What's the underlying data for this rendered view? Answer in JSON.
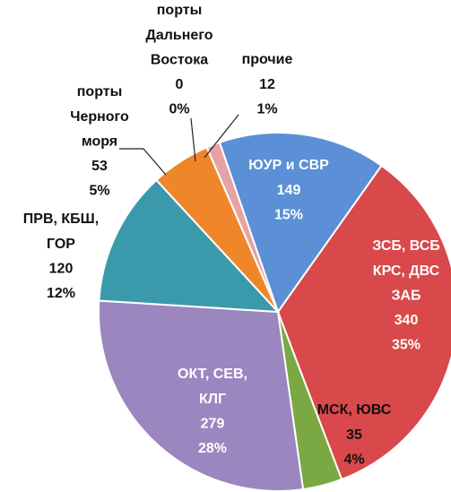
{
  "chart_data": {
    "type": "pie",
    "categories": [
      [
        "ЮУР и СВР"
      ],
      [
        "ЗСБ, ВСБ",
        "КРС, ДВС",
        "ЗАБ"
      ],
      [
        "МСК, ЮВС"
      ],
      [
        "ОКТ, СЕВ,",
        "КЛГ"
      ],
      [
        "ПРВ, КБШ,",
        "ГОР"
      ],
      [
        "порты",
        "Черного",
        "моря"
      ],
      [
        "порты",
        "Дальнего",
        "Востока"
      ],
      [
        "прочие"
      ]
    ],
    "values": [
      149,
      340,
      35,
      279,
      120,
      53,
      0,
      12
    ],
    "percent_labels": [
      "15%",
      "35%",
      "4%",
      "28%",
      "12%",
      "5%",
      "0%",
      "1%"
    ],
    "colors": [
      "#5b8fd6",
      "#d9484a",
      "#7aa843",
      "#9b86c0",
      "#3a9aab",
      "#f0862a",
      "#c9a04a",
      "#e6a3a3"
    ]
  }
}
